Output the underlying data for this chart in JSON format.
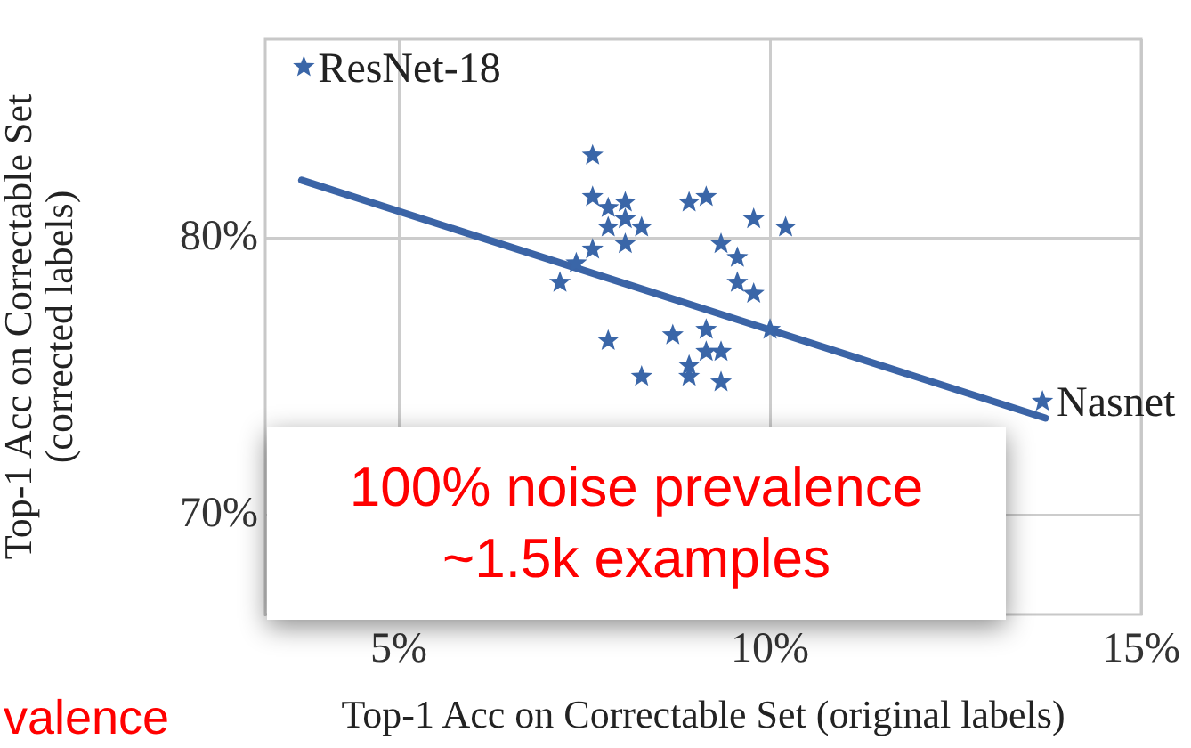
{
  "chart_data": {
    "type": "scatter",
    "xlabel": "Top-1 Acc on Correctable Set (original labels)",
    "ylabel": "Top-1 Acc on Correctable Set (corrected labels)",
    "xlim": [
      3.2,
      15
    ],
    "ylim": [
      66.4,
      87.2
    ],
    "xticks": [
      {
        "value": 5,
        "label": "5%"
      },
      {
        "value": 10,
        "label": "10%"
      },
      {
        "value": 15,
        "label": "15%"
      }
    ],
    "yticks": [
      {
        "value": 70,
        "label": "70%"
      },
      {
        "value": 80,
        "label": "80%"
      }
    ],
    "grid": true,
    "marker": "star",
    "series": [
      {
        "color": "#3a66a8",
        "x": [
          3.72,
          7.61,
          7.61,
          7.82,
          8.05,
          7.82,
          8.05,
          8.27,
          8.05,
          7.61,
          7.39,
          7.17,
          8.91,
          9.14,
          9.78,
          10.21,
          9.34,
          9.56,
          9.56,
          9.78,
          10.0,
          7.82,
          8.69,
          9.14,
          9.14,
          9.34,
          8.91,
          8.91,
          8.27,
          9.34,
          13.67
        ],
        "values": [
          86.2,
          83.0,
          81.5,
          81.1,
          81.3,
          80.4,
          80.7,
          80.4,
          79.8,
          79.6,
          79.1,
          78.4,
          81.3,
          81.5,
          80.7,
          80.4,
          79.8,
          79.3,
          78.4,
          78.0,
          76.7,
          76.3,
          76.5,
          76.7,
          75.9,
          75.9,
          75.4,
          75.0,
          75.0,
          74.8,
          74.1
        ]
      },
      {
        "type": "line",
        "color": "#3b64a6",
        "x": [
          3.69,
          13.71
        ],
        "values": [
          82.1,
          73.5
        ],
        "marker": "none",
        "line_style": "solid"
      }
    ],
    "annotations": [
      {
        "text": "ResNet-18",
        "x": 3.72,
        "y": 86.2
      },
      {
        "text": "Nasnet",
        "x": 13.67,
        "y": 74.1
      },
      "100% noise prevalence",
      "~1.5k examples",
      "valence"
    ]
  }
}
